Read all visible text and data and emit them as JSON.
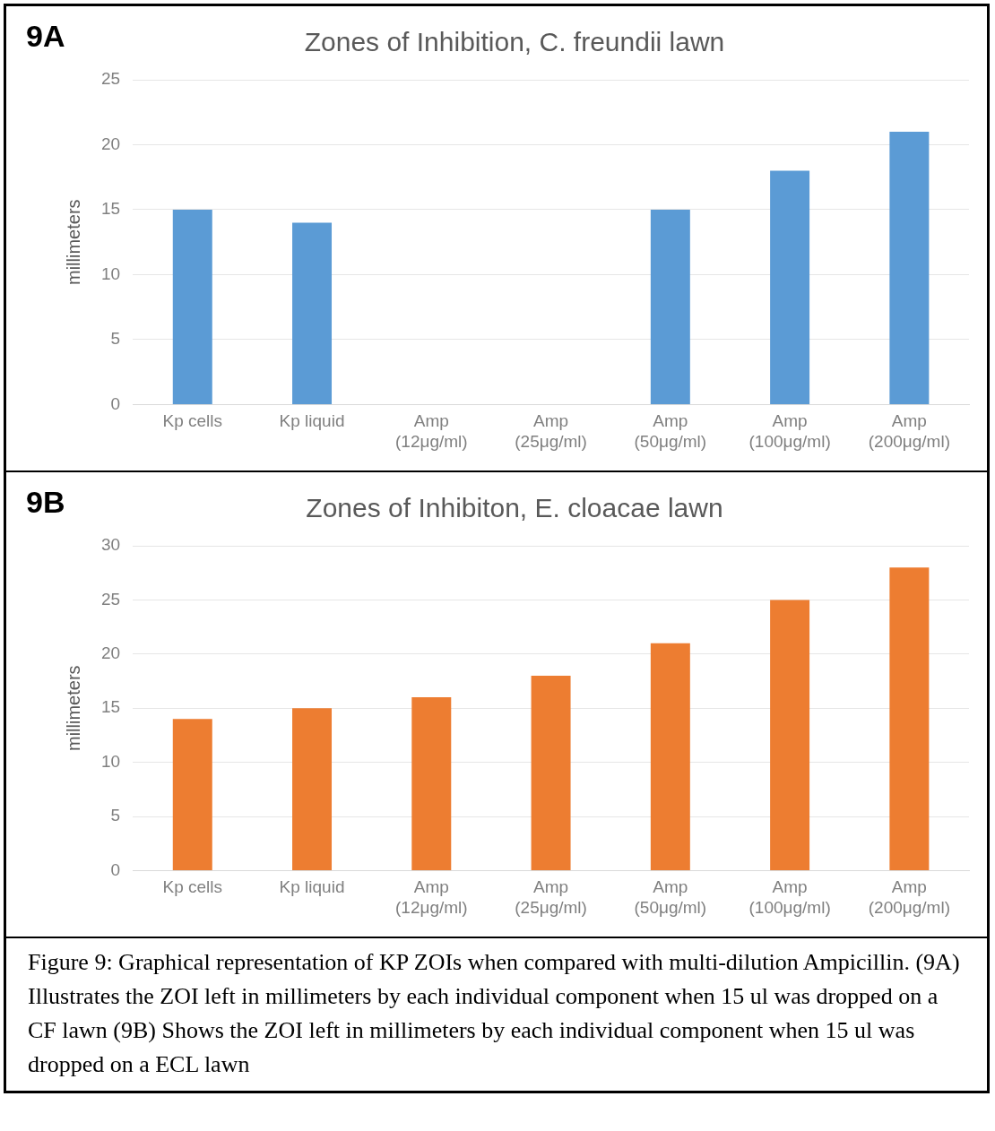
{
  "chart_data": [
    {
      "type": "bar",
      "title": "Zones of Inhibition, C. freundii lawn",
      "ylabel": "millimeters",
      "categories": [
        "Kp cells",
        "Kp liquid",
        "Amp (12μg/ml)",
        "Amp (25μg/ml)",
        "Amp (50μg/ml)",
        "Amp (100μg/ml)",
        "Amp (200μg/ml)"
      ],
      "values": [
        15,
        14,
        null,
        null,
        15,
        18,
        21
      ],
      "color": "#5b9bd5",
      "ylim": [
        0,
        25
      ],
      "yticks": [
        0,
        5,
        10,
        15,
        20,
        25
      ],
      "grid": "y",
      "legend": false,
      "annotations": [
        "9A"
      ]
    },
    {
      "type": "bar",
      "title": "Zones of Inhibiton, E. cloacae lawn",
      "ylabel": "millimeters",
      "categories": [
        "Kp cells",
        "Kp liquid",
        "Amp (12μg/ml)",
        "Amp (25μg/ml)",
        "Amp (50μg/ml)",
        "Amp (100μg/ml)",
        "Amp (200μg/ml)"
      ],
      "values": [
        14,
        15,
        16,
        18,
        21,
        25,
        28
      ],
      "color": "#ed7d31",
      "ylim": [
        0,
        30
      ],
      "yticks": [
        0,
        5,
        10,
        15,
        20,
        25,
        30
      ],
      "grid": "y",
      "legend": false,
      "annotations": [
        "9B",
        "Figure 9: Graphical representation of KP ZOIs when compared with multi-dilution Ampicillin. (9A) Illustrates the ZOI left in millimeters by each individual component when 15 ul was dropped on a CF lawn (9B) Shows the ZOI left in millimeters by each individual component when 15 ul was dropped on a ECL lawn"
      ]
    }
  ]
}
